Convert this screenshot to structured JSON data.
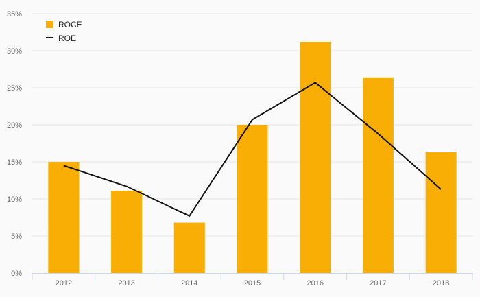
{
  "chart_data": {
    "type": "bar",
    "categories": [
      "2012",
      "2013",
      "2014",
      "2015",
      "2016",
      "2017",
      "2018"
    ],
    "series": [
      {
        "name": "ROCE",
        "kind": "bar",
        "color": "#f9ae06",
        "values": [
          15.0,
          11.1,
          6.8,
          20.0,
          31.2,
          26.4,
          16.3
        ]
      },
      {
        "name": "ROE",
        "kind": "line",
        "color": "#111111",
        "values": [
          14.5,
          11.7,
          7.7,
          20.7,
          25.7,
          18.8,
          11.3
        ]
      }
    ],
    "title": "",
    "xlabel": "",
    "ylabel": "",
    "ylim": [
      0,
      35
    ],
    "y_ticks": [
      0,
      5,
      10,
      15,
      20,
      25,
      30,
      35
    ],
    "y_tick_labels": [
      "0%",
      "5%",
      "10%",
      "15%",
      "20%",
      "25%",
      "30%",
      "35%"
    ],
    "grid": true,
    "grid_color": "#e6e6e6",
    "legend_position": "top-left"
  }
}
